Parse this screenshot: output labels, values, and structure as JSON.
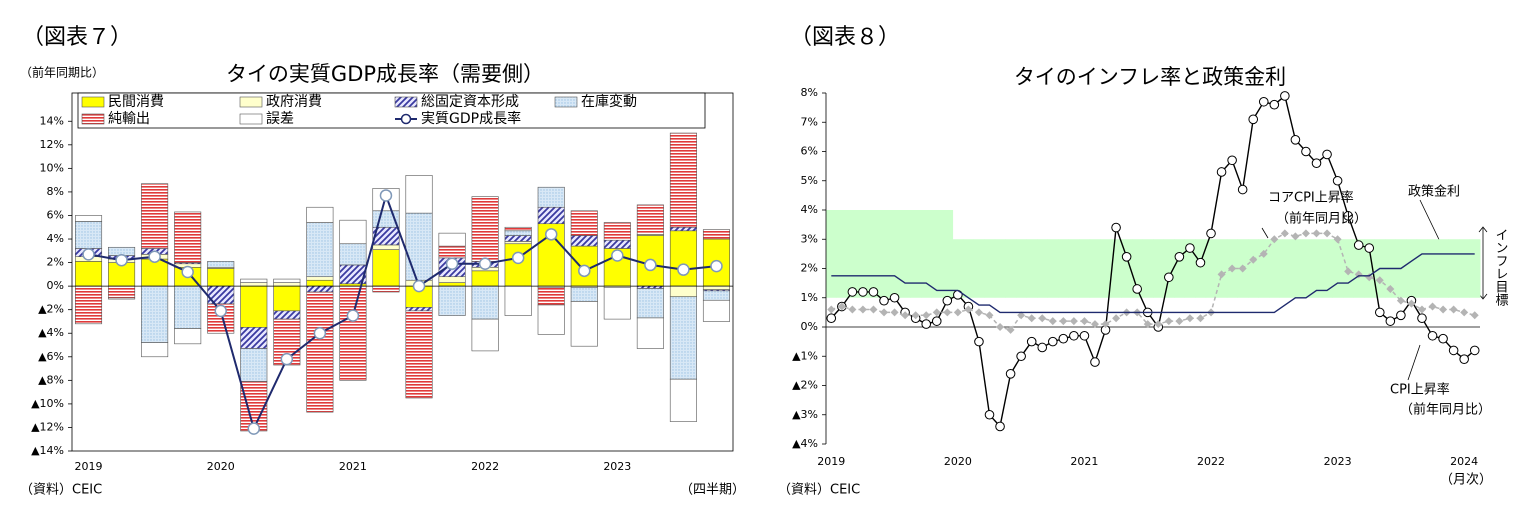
{
  "chart_data": [
    {
      "type": "bar",
      "stacked": true,
      "figure_label": "（図表７）",
      "title": "タイの実質GDP成長率（需要側）",
      "y_label": "（前年同期比）",
      "x_unit": "（四半期）",
      "source": "（資料）CEIC",
      "categories": [
        "2019",
        null,
        null,
        null,
        "2020",
        null,
        null,
        null,
        "2021",
        null,
        null,
        null,
        "2022",
        null,
        null,
        null,
        "2023",
        null,
        null,
        null
      ],
      "ylim": [
        -14,
        16.4
      ],
      "yticks": [
        {
          "value": 14,
          "label": "14%"
        },
        {
          "value": 12,
          "label": "12%"
        },
        {
          "value": 10,
          "label": "10%"
        },
        {
          "value": 8,
          "label": "8%"
        },
        {
          "value": 6,
          "label": "6%"
        },
        {
          "value": 4,
          "label": "4%"
        },
        {
          "value": 2,
          "label": "2%"
        },
        {
          "value": 0,
          "label": "0%"
        },
        {
          "value": -2,
          "label": "▲2%"
        },
        {
          "value": -4,
          "label": "▲4%"
        },
        {
          "value": -6,
          "label": "▲6%"
        },
        {
          "value": -8,
          "label": "▲8%"
        },
        {
          "value": -10,
          "label": "▲10%"
        },
        {
          "value": -12,
          "label": "▲12%"
        },
        {
          "value": -14,
          "label": "▲14%"
        }
      ],
      "series": [
        {
          "name": "民間消費",
          "color": "#ffff00",
          "pattern": "solid",
          "values": [
            2.1,
            2.0,
            2.3,
            1.6,
            1.5,
            -3.5,
            -2.1,
            0.5,
            0.2,
            3.1,
            -1.8,
            0.3,
            1.3,
            3.6,
            5.3,
            3.4,
            3.2,
            4.3,
            4.7,
            4.0
          ]
        },
        {
          "name": "政府消費",
          "color": "#ffffcc",
          "pattern": "solid",
          "values": [
            0.4,
            0.3,
            0.4,
            0.3,
            0.1,
            0.3,
            0.3,
            0.3,
            0.0,
            0.4,
            0.5,
            0.5,
            0.3,
            0.2,
            -0.1,
            -0.1,
            -0.1,
            0.1,
            -0.9,
            -0.3
          ]
        },
        {
          "name": "総固定資本形成",
          "color": "#3a3aa0",
          "pattern": "diagonal",
          "values": [
            0.7,
            0.3,
            0.5,
            0.1,
            -1.5,
            -1.8,
            -0.7,
            -0.5,
            1.6,
            1.5,
            -0.3,
            1.6,
            0.5,
            0.5,
            1.4,
            0.9,
            0.7,
            -0.2,
            0.3,
            -0.1
          ]
        },
        {
          "name": "在庫変動",
          "color": "#9cc3e4",
          "pattern": "dots",
          "values": [
            2.3,
            0.7,
            -4.8,
            -3.6,
            0.5,
            -2.8,
            0.0,
            4.6,
            1.8,
            1.4,
            5.7,
            -2.5,
            -2.8,
            0.4,
            1.7,
            -1.2,
            0.0,
            -2.5,
            -7.0,
            -0.8
          ]
        },
        {
          "name": "純輸出",
          "color": "#e03a3a",
          "pattern": "hlines",
          "values": [
            -3.2,
            -1.0,
            5.5,
            4.3,
            -2.5,
            -4.2,
            -3.9,
            -10.2,
            -8.0,
            -0.5,
            -7.4,
            1.0,
            5.5,
            0.3,
            -1.5,
            2.1,
            1.5,
            2.5,
            8.0,
            0.8
          ]
        },
        {
          "name": "誤差",
          "color": "#ffffff",
          "pattern": "solid",
          "values": [
            0.5,
            -0.1,
            -1.2,
            -1.3,
            0.0,
            0.3,
            0.3,
            1.3,
            2.0,
            1.9,
            3.2,
            1.1,
            -2.7,
            -2.5,
            -2.5,
            -3.8,
            -2.7,
            -2.6,
            -3.6,
            -1.8
          ]
        },
        {
          "name": "実質GDP成長率",
          "type": "line",
          "color": "#1f2a6e",
          "marker": "circle",
          "values": [
            2.7,
            2.2,
            2.5,
            1.2,
            -2.1,
            -12.1,
            -6.2,
            -4.0,
            -2.5,
            7.7,
            0.0,
            1.9,
            1.9,
            2.4,
            4.4,
            1.3,
            2.6,
            1.8,
            1.4,
            1.7
          ]
        }
      ]
    },
    {
      "type": "line",
      "figure_label": "（図表８）",
      "title": "タイのインフレ率と政策金利",
      "x_unit": "（月次）",
      "source": "（資料）CEIC",
      "categories": [
        "2019",
        null,
        null,
        null,
        null,
        null,
        null,
        null,
        null,
        null,
        null,
        null,
        "2020",
        null,
        null,
        null,
        null,
        null,
        null,
        null,
        null,
        null,
        null,
        null,
        "2021",
        null,
        null,
        null,
        null,
        null,
        null,
        null,
        null,
        null,
        null,
        null,
        "2022",
        null,
        null,
        null,
        null,
        null,
        null,
        null,
        null,
        null,
        null,
        null,
        "2023",
        null,
        null,
        null,
        null,
        null,
        null,
        null,
        null,
        null,
        null,
        null,
        "2024",
        null
      ],
      "ylim": [
        -4,
        8
      ],
      "yticks": [
        {
          "value": 8,
          "label": "8%"
        },
        {
          "value": 7,
          "label": "7%"
        },
        {
          "value": 6,
          "label": "6%"
        },
        {
          "value": 5,
          "label": "5%"
        },
        {
          "value": 4,
          "label": "4%"
        },
        {
          "value": 3,
          "label": "3%"
        },
        {
          "value": 2,
          "label": "2%"
        },
        {
          "value": 1,
          "label": "1%"
        },
        {
          "value": 0,
          "label": "0%"
        },
        {
          "value": -1,
          "label": "▲1%"
        },
        {
          "value": -2,
          "label": "▲2%"
        },
        {
          "value": -3,
          "label": "▲3%"
        },
        {
          "value": -4,
          "label": "▲4%"
        }
      ],
      "band": {
        "name": "インフレ目標",
        "color": "#ccffcc",
        "upper": [
          4,
          4,
          4,
          4,
          4,
          4,
          4,
          4,
          4,
          4,
          4,
          4,
          3,
          3,
          3,
          3,
          3,
          3,
          3,
          3,
          3,
          3,
          3,
          3,
          3,
          3,
          3,
          3,
          3,
          3,
          3,
          3,
          3,
          3,
          3,
          3,
          3,
          3,
          3,
          3,
          3,
          3,
          3,
          3,
          3,
          3,
          3,
          3,
          3,
          3,
          3,
          3,
          3,
          3,
          3,
          3,
          3,
          3,
          3,
          3,
          3,
          3
        ],
        "lower": [
          1,
          1,
          1,
          1,
          1,
          1,
          1,
          1,
          1,
          1,
          1,
          1,
          1,
          1,
          1,
          1,
          1,
          1,
          1,
          1,
          1,
          1,
          1,
          1,
          1,
          1,
          1,
          1,
          1,
          1,
          1,
          1,
          1,
          1,
          1,
          1,
          1,
          1,
          1,
          1,
          1,
          1,
          1,
          1,
          1,
          1,
          1,
          1,
          1,
          1,
          1,
          1,
          1,
          1,
          1,
          1,
          1,
          1,
          1,
          1,
          1,
          1
        ]
      },
      "series": [
        {
          "name": "CPI上昇率",
          "note": "（前年同月比）",
          "color": "#000000",
          "marker": "circle",
          "values": [
            0.3,
            0.7,
            1.2,
            1.2,
            1.2,
            0.9,
            1.0,
            0.5,
            0.3,
            0.1,
            0.2,
            0.9,
            1.1,
            0.7,
            -0.5,
            -3.0,
            -3.4,
            -1.6,
            -1.0,
            -0.5,
            -0.7,
            -0.5,
            -0.4,
            -0.3,
            -0.3,
            -1.2,
            -0.1,
            3.4,
            2.4,
            1.3,
            0.5,
            0.0,
            1.7,
            2.4,
            2.7,
            2.2,
            3.2,
            5.3,
            5.7,
            4.7,
            7.1,
            7.7,
            7.6,
            7.9,
            6.4,
            6.0,
            5.6,
            5.9,
            5.0,
            3.8,
            2.8,
            2.7,
            0.5,
            0.2,
            0.4,
            0.9,
            0.3,
            -0.3,
            -0.4,
            -0.8,
            -1.1,
            -0.8
          ]
        },
        {
          "name": "コアCPI上昇率",
          "note": "（前年同月比）",
          "color": "#b4b4b4",
          "marker": "diamond",
          "dash": true,
          "values": [
            0.6,
            0.7,
            0.6,
            0.6,
            0.6,
            0.5,
            0.5,
            0.4,
            0.4,
            0.4,
            0.5,
            0.5,
            0.5,
            0.6,
            0.5,
            0.4,
            0.0,
            -0.1,
            0.4,
            0.3,
            0.3,
            0.2,
            0.2,
            0.2,
            0.2,
            0.1,
            0.1,
            0.3,
            0.5,
            0.5,
            0.1,
            0.1,
            0.2,
            0.2,
            0.3,
            0.3,
            0.5,
            1.8,
            2.0,
            2.0,
            2.3,
            2.5,
            3.0,
            3.2,
            3.1,
            3.2,
            3.2,
            3.2,
            3.0,
            1.9,
            1.8,
            1.7,
            1.6,
            1.3,
            0.9,
            0.8,
            0.6,
            0.7,
            0.6,
            0.6,
            0.5,
            0.4
          ]
        },
        {
          "name": "政策金利",
          "color": "#1f2a6e",
          "marker": "none",
          "values": [
            1.75,
            1.75,
            1.75,
            1.75,
            1.75,
            1.75,
            1.75,
            1.5,
            1.5,
            1.5,
            1.25,
            1.25,
            1.25,
            1.0,
            0.75,
            0.75,
            0.5,
            0.5,
            0.5,
            0.5,
            0.5,
            0.5,
            0.5,
            0.5,
            0.5,
            0.5,
            0.5,
            0.5,
            0.5,
            0.5,
            0.5,
            0.5,
            0.5,
            0.5,
            0.5,
            0.5,
            0.5,
            0.5,
            0.5,
            0.5,
            0.5,
            0.5,
            0.5,
            0.75,
            1.0,
            1.0,
            1.25,
            1.25,
            1.5,
            1.5,
            1.75,
            1.75,
            2.0,
            2.0,
            2.0,
            2.25,
            2.5,
            2.5,
            2.5,
            2.5,
            2.5,
            2.5
          ]
        }
      ]
    }
  ]
}
